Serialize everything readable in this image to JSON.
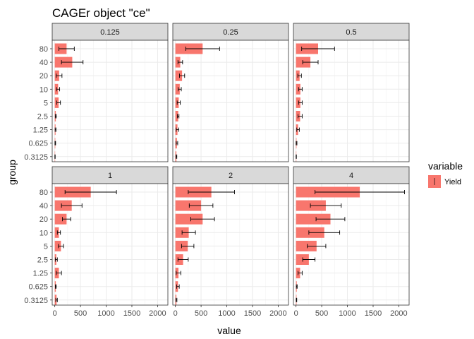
{
  "chart_data": {
    "type": "bar",
    "orientation": "horizontal",
    "title": "CAGEr object \"ce\"",
    "xlabel": "value",
    "ylabel": "group",
    "xlim": [
      -50,
      2200
    ],
    "xticks": [
      0,
      500,
      1000,
      1500,
      2000
    ],
    "grid": true,
    "legend": {
      "title": "variable",
      "position": "right",
      "entries": [
        "Yield"
      ]
    },
    "series_name": "Yield",
    "bar_color": "#f8766d",
    "error_bar_color": "#000000",
    "categories": [
      "80",
      "40",
      "20",
      "10",
      "5",
      "2.5",
      "1.25",
      "0.625",
      "0.3125"
    ],
    "panels": [
      {
        "label": "0.125",
        "values": [
          230,
          340,
          85,
          65,
          75,
          20,
          15,
          10,
          5
        ],
        "errors": [
          150,
          210,
          55,
          30,
          35,
          10,
          8,
          6,
          3
        ]
      },
      {
        "label": "0.25",
        "values": [
          530,
          95,
          130,
          85,
          65,
          55,
          40,
          30,
          20
        ],
        "errors": [
          330,
          45,
          50,
          30,
          30,
          15,
          25,
          15,
          8
        ]
      },
      {
        "label": "0.5",
        "values": [
          430,
          280,
          70,
          85,
          85,
          80,
          40,
          10,
          5
        ],
        "errors": [
          320,
          150,
          35,
          35,
          35,
          40,
          25,
          8,
          3
        ]
      },
      {
        "label": "1",
        "values": [
          700,
          330,
          230,
          80,
          120,
          30,
          80,
          20,
          35
        ],
        "errors": [
          500,
          200,
          80,
          30,
          50,
          20,
          50,
          8,
          15
        ]
      },
      {
        "label": "2",
        "values": [
          700,
          500,
          530,
          260,
          240,
          150,
          60,
          50,
          20
        ],
        "errors": [
          450,
          230,
          230,
          130,
          120,
          100,
          45,
          25,
          10
        ]
      },
      {
        "label": "4",
        "values": [
          1240,
          580,
          670,
          550,
          400,
          250,
          80,
          15,
          10
        ],
        "errors": [
          870,
          300,
          280,
          300,
          180,
          120,
          40,
          8,
          5
        ]
      }
    ]
  }
}
